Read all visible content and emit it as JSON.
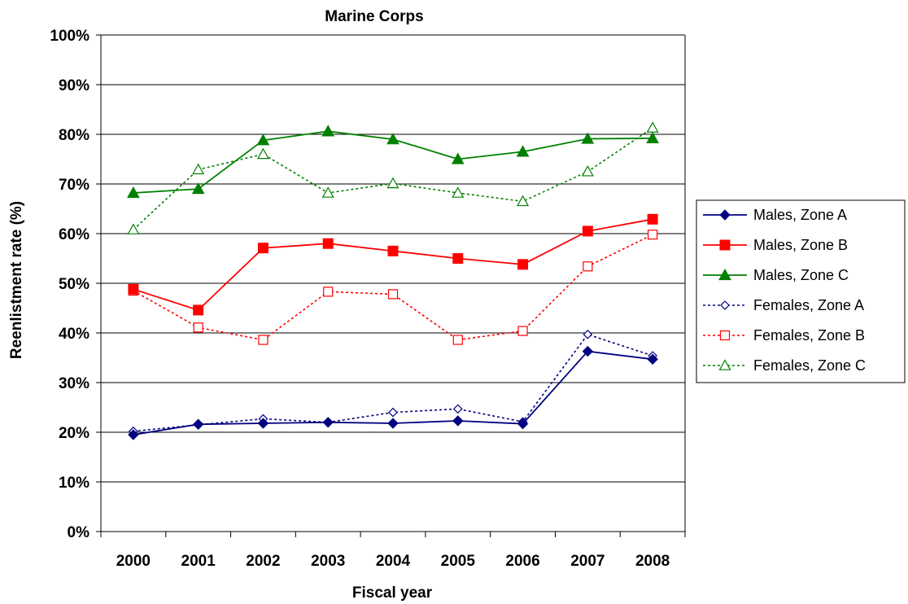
{
  "chart_data": {
    "type": "line",
    "title": "Marine Corps",
    "xlabel": "Fiscal year",
    "ylabel": "Reenlistment rate (%)",
    "categories": [
      "2000",
      "2001",
      "2002",
      "2003",
      "2004",
      "2005",
      "2006",
      "2007",
      "2008"
    ],
    "ylim": [
      0,
      100
    ],
    "y_ticks": [
      "0%",
      "10%",
      "20%",
      "30%",
      "40%",
      "50%",
      "60%",
      "70%",
      "80%",
      "90%",
      "100%"
    ],
    "grid": "horizontal",
    "legend_position": "right",
    "series": [
      {
        "name": "Males, Zone A",
        "values": [
          19.5,
          21.6,
          21.8,
          22.0,
          21.8,
          22.3,
          21.7,
          36.3,
          34.7
        ],
        "color": "#000080",
        "marker": "diamond-filled",
        "line": "solid"
      },
      {
        "name": "Males, Zone B",
        "values": [
          48.8,
          44.6,
          57.1,
          58.0,
          56.5,
          55.0,
          53.8,
          60.5,
          62.9
        ],
        "color": "#ff0000",
        "marker": "square-filled",
        "line": "solid"
      },
      {
        "name": "Males, Zone C",
        "values": [
          68.2,
          69.0,
          78.8,
          80.6,
          79.0,
          75.0,
          76.5,
          79.1,
          79.2
        ],
        "color": "#008000",
        "marker": "triangle-filled",
        "line": "solid"
      },
      {
        "name": "Females, Zone A",
        "values": [
          20.2,
          21.5,
          22.7,
          22.0,
          24.0,
          24.7,
          22.1,
          39.7,
          35.4
        ],
        "color": "#000080",
        "marker": "diamond-open",
        "line": "dotted"
      },
      {
        "name": "Females, Zone B",
        "values": [
          48.5,
          41.1,
          38.6,
          48.3,
          47.8,
          38.6,
          40.4,
          53.4,
          59.8
        ],
        "color": "#ff0000",
        "marker": "square-open",
        "line": "dotted"
      },
      {
        "name": "Females, Zone C",
        "values": [
          60.8,
          72.9,
          76.0,
          68.2,
          70.1,
          68.2,
          66.5,
          72.5,
          81.3
        ],
        "color": "#008000",
        "marker": "triangle-open",
        "line": "dotted"
      }
    ]
  }
}
